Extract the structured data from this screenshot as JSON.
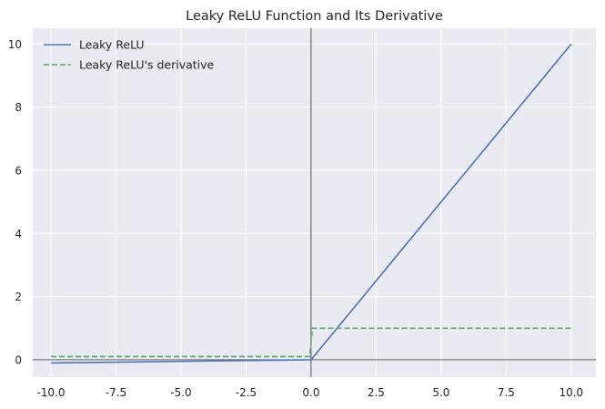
{
  "chart_data": {
    "type": "line",
    "title": "Leaky ReLU Function and Its Derivative",
    "xlabel": "",
    "ylabel": "",
    "xlim": [
      -10.7,
      10.95
    ],
    "ylim": [
      -0.55,
      10.5
    ],
    "x_ticks": [
      -10.0,
      -7.5,
      -5.0,
      -2.5,
      0.0,
      2.5,
      5.0,
      7.5,
      10.0
    ],
    "x_tick_labels": [
      "-10.0",
      "-7.5",
      "-5.0",
      "-2.5",
      "0.0",
      "2.5",
      "5.0",
      "7.5",
      "10.0"
    ],
    "y_ticks": [
      0,
      2,
      4,
      6,
      8,
      10
    ],
    "y_tick_labels": [
      "0",
      "2",
      "4",
      "6",
      "8",
      "10"
    ],
    "grid": true,
    "legend_position": "top-left",
    "reference_lines": {
      "x": 0,
      "y": 0,
      "color": "#000000"
    },
    "series": [
      {
        "name": "Leaky ReLU",
        "color": "#4c72b0",
        "style": "solid",
        "x": [
          -10.0,
          0.0,
          10.0
        ],
        "y": [
          -0.1,
          0.0,
          10.0
        ]
      },
      {
        "name": "Leaky ReLU's derivative",
        "color": "#55a868",
        "style": "dashed",
        "x": [
          -10.0,
          -0.05,
          0.05,
          10.0
        ],
        "y": [
          0.1,
          0.1,
          1.0,
          1.0
        ]
      }
    ]
  },
  "colors": {
    "plot_background": "#eaeaf2",
    "grid": "#ffffff",
    "text": "#262626"
  }
}
